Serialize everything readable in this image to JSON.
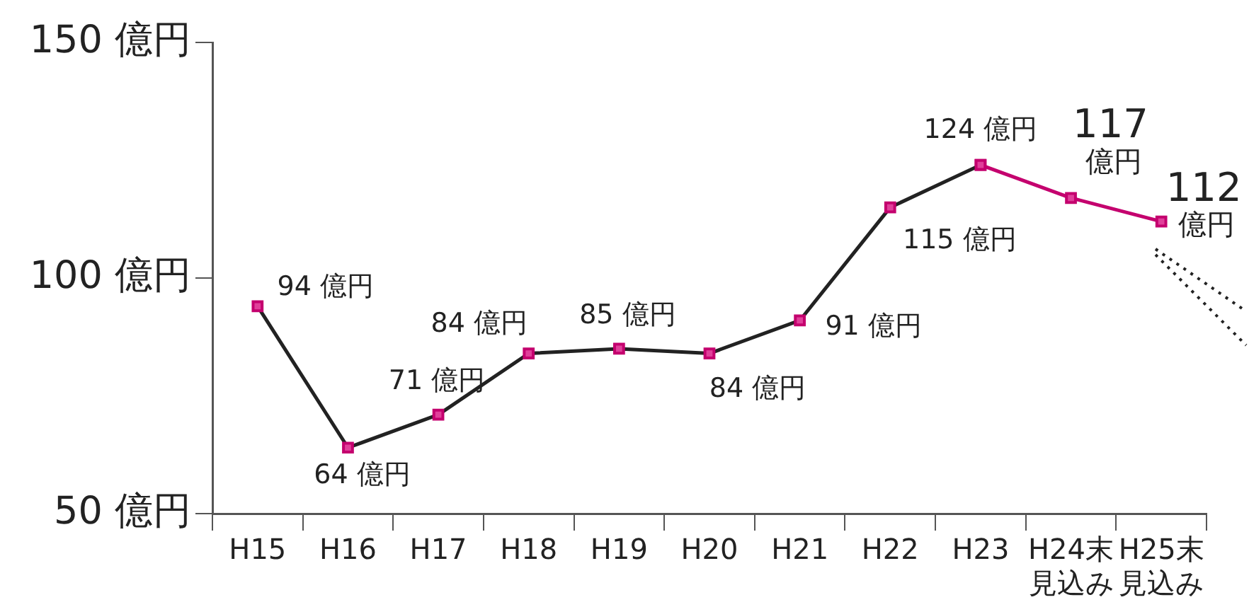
{
  "chart_data": {
    "type": "line",
    "categories": [
      "H15",
      "H16",
      "H17",
      "H18",
      "H19",
      "H20",
      "H21",
      "H22",
      "H23",
      "H24末見込み",
      "H25末見込み"
    ],
    "series": [
      {
        "color": "#222222",
        "values": [
          94,
          64,
          71,
          84,
          85,
          84,
          91,
          115,
          124,
          null,
          null
        ]
      },
      {
        "color": "#c4006e",
        "values": [
          null,
          null,
          null,
          null,
          null,
          null,
          null,
          null,
          124,
          117,
          112
        ],
        "value_labels": [
          null,
          null,
          null,
          null,
          null,
          null,
          null,
          null,
          null,
          null,
          null
        ]
      }
    ],
    "value_labels": [
      "94 億円",
      "64 億円",
      "71 億円",
      "84 億円",
      "85 億円",
      "84 億円",
      "91 億円",
      "115 億円",
      "124 億円",
      "117\n億円",
      "112\n億円"
    ],
    "ylim": [
      50,
      150
    ],
    "yticks": [
      {
        "value": 50,
        "label": "50 億円"
      },
      {
        "value": 100,
        "label": "100 億円"
      },
      {
        "value": 150,
        "label": "150 億円"
      }
    ],
    "marker": "square",
    "grid": false,
    "legend": false
  }
}
